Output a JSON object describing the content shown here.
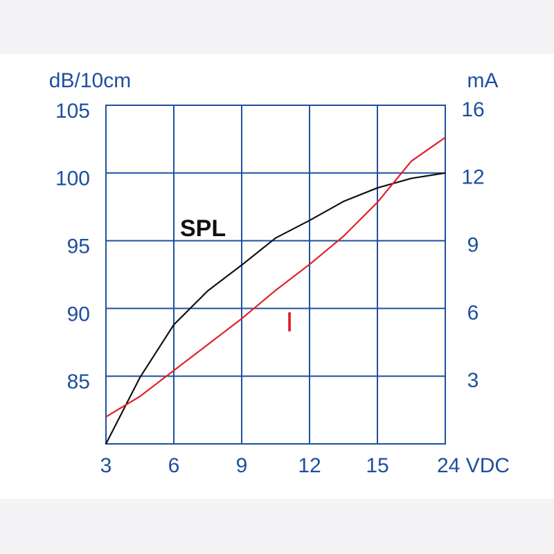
{
  "chart_data": {
    "type": "line",
    "y_label": "dB/10cm",
    "y2_label": "mA",
    "x": [
      3,
      4.5,
      6,
      7.5,
      9,
      10.5,
      12,
      13.5,
      15,
      19.5,
      24
    ],
    "xlim": [
      3,
      24
    ],
    "xticks": [
      3,
      6,
      9,
      12,
      15,
      {
        "value": 24,
        "label": "24 VDC"
      }
    ],
    "ylim": [
      80,
      105
    ],
    "yticks": [
      85,
      90,
      95,
      100,
      105
    ],
    "y2lim": [
      0,
      16
    ],
    "y2ticks": [
      3,
      6,
      9,
      12,
      16
    ],
    "grid": true,
    "series": [
      {
        "name": "SPL",
        "color": "#111111",
        "values": [
          80,
          84.9,
          88.8,
          91.3,
          93.2,
          95.2,
          96.5,
          97.9,
          98.9,
          99.6,
          100
        ]
      },
      {
        "name": "I",
        "color": "#e0202a",
        "axis": "y2",
        "values": [
          1.2,
          2.1,
          3.25,
          4.4,
          5.55,
          6.8,
          7.95,
          9.2,
          10.7,
          12.7,
          14.1
        ]
      }
    ]
  }
}
